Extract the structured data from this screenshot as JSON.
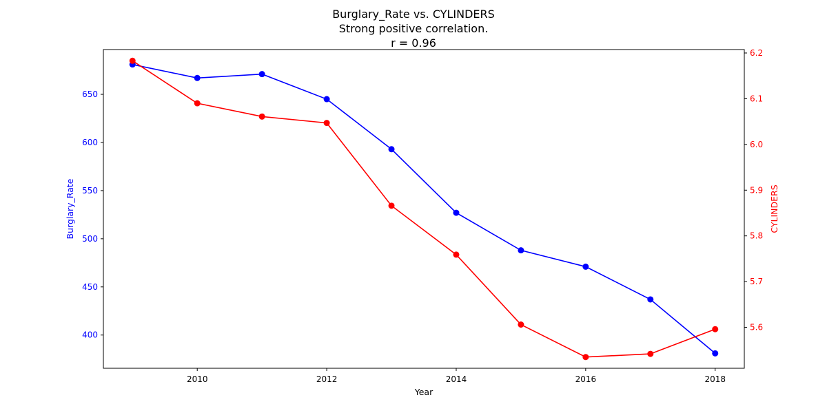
{
  "chart_data": {
    "type": "line",
    "title_lines": [
      "Burglary_Rate vs. CYLINDERS",
      "Strong positive correlation.",
      "r = 0.96"
    ],
    "xlabel": "Year",
    "x": [
      2009,
      2010,
      2011,
      2012,
      2013,
      2014,
      2015,
      2016,
      2017,
      2018
    ],
    "xlim": [
      2008.55,
      2018.45
    ],
    "xticks": [
      2010,
      2012,
      2014,
      2016,
      2018
    ],
    "axes": {
      "left": {
        "label": "Burglary_Rate",
        "color": "#0000ff",
        "ylim": [
          365.5,
          696.5
        ],
        "ticks": [
          400,
          450,
          500,
          550,
          600,
          650
        ],
        "tick_labels": [
          "400",
          "450",
          "500",
          "550",
          "600",
          "650"
        ]
      },
      "right": {
        "label": "CYLINDERS",
        "color": "#ff0000",
        "ylim": [
          5.5105,
          6.2075
        ],
        "ticks": [
          5.6,
          5.7,
          5.8,
          5.9,
          6.0,
          6.1,
          6.2
        ],
        "tick_labels": [
          "5.6",
          "5.7",
          "5.8",
          "5.9",
          "6.0",
          "6.1",
          "6.2"
        ]
      }
    },
    "series": [
      {
        "axis": "left",
        "color": "#0000ff",
        "values": [
          681,
          667,
          671,
          645,
          593,
          527,
          488,
          471,
          437,
          381
        ]
      },
      {
        "axis": "right",
        "color": "#ff0000",
        "values": [
          6.183,
          6.09,
          6.061,
          6.047,
          5.866,
          5.759,
          5.606,
          5.535,
          5.542,
          5.596
        ]
      }
    ]
  }
}
